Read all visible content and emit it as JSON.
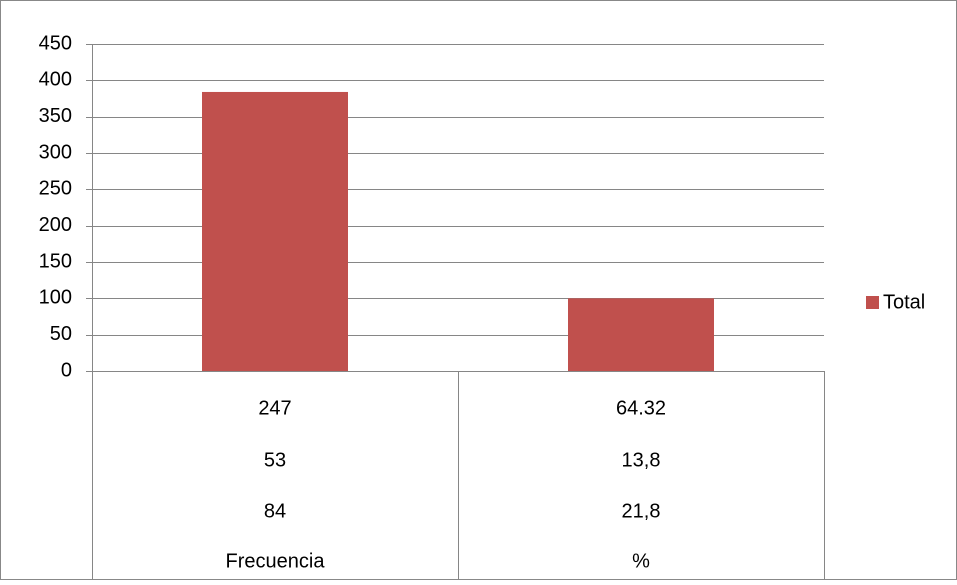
{
  "chart_data": {
    "type": "bar",
    "title": "",
    "xlabel": "",
    "ylabel": "",
    "ylim": [
      0,
      450
    ],
    "yticks": [
      0,
      50,
      100,
      150,
      200,
      250,
      300,
      350,
      400,
      450
    ],
    "grid": true,
    "legend_position": "right",
    "categories": [
      "Frecuencia",
      "%"
    ],
    "category_levels": [
      [
        "247",
        "64.32"
      ],
      [
        "53",
        "13,8"
      ],
      [
        "84",
        "21,8"
      ]
    ],
    "series": [
      {
        "name": "Total",
        "values": [
          384,
          100
        ],
        "color": "#c0504d"
      }
    ]
  }
}
